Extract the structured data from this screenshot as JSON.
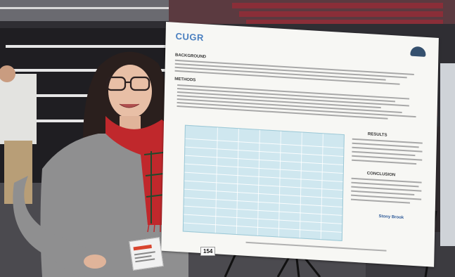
{
  "poster": {
    "logo": "CUGR",
    "sections": [
      "BACKGROUND",
      "METHODS",
      "RESULTS",
      "CONCLUSION"
    ],
    "booth_number": "154",
    "school_logo": "Stony Brook"
  },
  "colors": {
    "poster_title": "#2a4a8a",
    "logo_blue": "#4a7fc0",
    "table_fill": "#cfe7ef",
    "scarf_red": "#c0282c",
    "sweater_gray": "#8c8c8c"
  }
}
